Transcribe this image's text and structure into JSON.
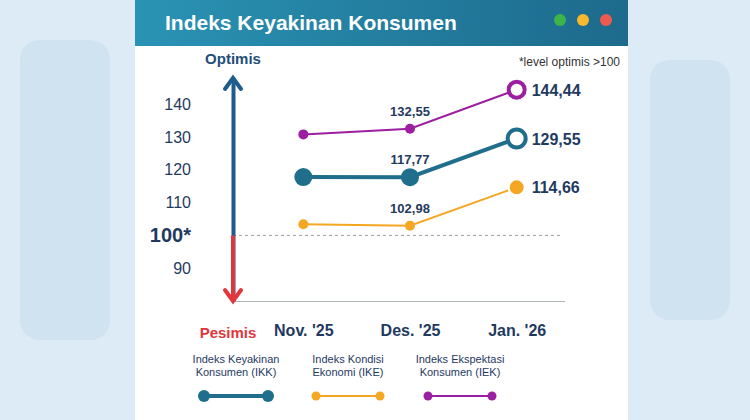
{
  "chart_data": {
    "type": "line",
    "title": "Indeks Keyakinan Konsumen",
    "y_top_label": "Optimis",
    "y_bottom_label": "Pesimis",
    "note": "*level optimis >100",
    "categories": [
      "Nov. '25",
      "Des. '25",
      "Jan. '26"
    ],
    "series": [
      {
        "name": "Indeks Keyakinan Konsumen (IKK)",
        "color": "#1f6e8c",
        "marker": "circle",
        "values": [
          117.8,
          117.77,
          129.55
        ],
        "value_labels": [
          null,
          "117,77",
          "129,55"
        ]
      },
      {
        "name": "Indeks Kondisi Ekonomi (IKE)",
        "color": "#f5a623",
        "marker": "circle",
        "values": [
          103.4,
          102.98,
          114.66
        ],
        "value_labels": [
          null,
          "102,98",
          "114,66"
        ]
      },
      {
        "name": "Indeks Ekspektasi Konsumen (IEK)",
        "color": "#9b1fa0",
        "marker": "circle",
        "values": [
          130.8,
          132.55,
          144.44
        ],
        "value_labels": [
          null,
          "132,55",
          "144,44"
        ]
      }
    ],
    "ylim": [
      80,
      148
    ],
    "yticks": [
      90,
      {
        "value": 100,
        "label": "100*"
      },
      110,
      120,
      130,
      140
    ],
    "grid": false,
    "legend": "bottom",
    "data_labels": true
  }
}
